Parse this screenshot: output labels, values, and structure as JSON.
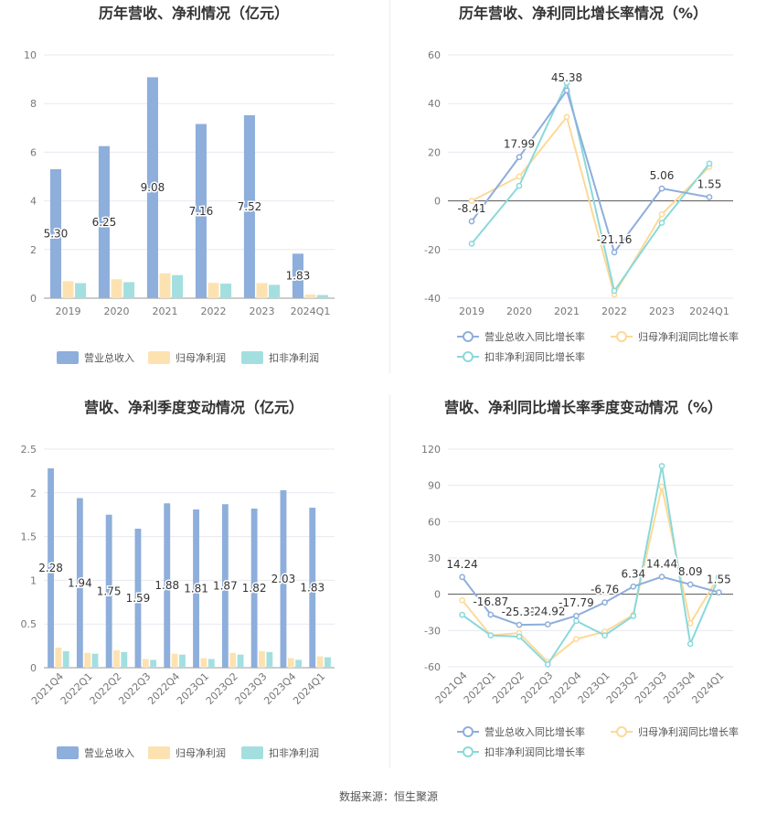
{
  "colors": {
    "revenue": "#8eaedb",
    "net_profit": "#fde2b1",
    "deducted_profit": "#a4dfe0",
    "revenue_line": "#8eaedb",
    "net_line": "#fdd998",
    "deducted_line": "#89d9da"
  },
  "source": "数据来源：恒生聚源",
  "chart_data": [
    {
      "type": "bar",
      "title": "历年营收、净利情况（亿元）",
      "categories": [
        "2019",
        "2020",
        "2021",
        "2022",
        "2023",
        "2024Q1"
      ],
      "ylim": [
        0,
        10
      ],
      "yticks": [
        "0",
        "2",
        "4",
        "6",
        "8",
        "10"
      ],
      "series": [
        {
          "name": "营业总收入",
          "values": [
            5.3,
            6.25,
            9.08,
            7.16,
            7.52,
            1.83
          ],
          "labels": [
            "5.30",
            "6.25",
            "9.08",
            "7.16",
            "7.52",
            "1.83"
          ]
        },
        {
          "name": "归母净利润",
          "values": [
            0.7,
            0.78,
            1.02,
            0.63,
            0.62,
            0.15
          ]
        },
        {
          "name": "扣非净利润",
          "values": [
            0.62,
            0.66,
            0.95,
            0.6,
            0.55,
            0.13
          ]
        }
      ],
      "grid": true,
      "legend": "bottom"
    },
    {
      "type": "line",
      "title": "历年营收、净利同比增长率情况（%）",
      "categories": [
        "2019",
        "2020",
        "2021",
        "2022",
        "2023",
        "2024Q1"
      ],
      "ylim": [
        -40,
        60
      ],
      "yticks": [
        "-40",
        "-20",
        "0",
        "20",
        "40",
        "60"
      ],
      "series": [
        {
          "name": "营业总收入同比增长率",
          "values": [
            -8.41,
            17.99,
            45.38,
            -21.16,
            5.06,
            1.55
          ],
          "labels": [
            "-8.41",
            "17.99",
            "45.38",
            "-21.16",
            "5.06",
            "1.55"
          ]
        },
        {
          "name": "归母净利润同比增长率",
          "values": [
            0,
            10,
            34.5,
            -38.5,
            -5.5,
            14
          ]
        },
        {
          "name": "扣非净利润同比增长率",
          "values": [
            -17.6,
            6.2,
            48.5,
            -37,
            -9,
            15.3
          ]
        }
      ],
      "grid": true,
      "legend": "bottom"
    },
    {
      "type": "bar",
      "title": "营收、净利季度变动情况（亿元）",
      "categories": [
        "2021Q4",
        "2022Q1",
        "2022Q2",
        "2022Q3",
        "2022Q4",
        "2023Q1",
        "2023Q2",
        "2023Q3",
        "2023Q4",
        "2024Q1"
      ],
      "ylim": [
        0,
        2.5
      ],
      "yticks": [
        "0",
        "0.5",
        "1",
        "1.5",
        "2",
        "2.5"
      ],
      "series": [
        {
          "name": "营业总收入",
          "values": [
            2.28,
            1.94,
            1.75,
            1.59,
            1.88,
            1.81,
            1.87,
            1.82,
            2.03,
            1.83
          ],
          "labels": [
            "2.28",
            "1.94",
            "1.75",
            "1.59",
            "1.88",
            "1.81",
            "1.87",
            "1.82",
            "2.03",
            "1.83"
          ]
        },
        {
          "name": "归母净利润",
          "values": [
            0.23,
            0.17,
            0.2,
            0.1,
            0.16,
            0.11,
            0.17,
            0.19,
            0.11,
            0.13
          ]
        },
        {
          "name": "扣非净利润",
          "values": [
            0.19,
            0.16,
            0.18,
            0.09,
            0.15,
            0.1,
            0.15,
            0.18,
            0.09,
            0.12
          ]
        }
      ],
      "grid": true,
      "legend": "bottom"
    },
    {
      "type": "line",
      "title": "营收、净利同比增长率季度变动情况（%）",
      "categories": [
        "2021Q4",
        "2022Q1",
        "2022Q2",
        "2022Q3",
        "2022Q4",
        "2023Q1",
        "2023Q2",
        "2023Q3",
        "2023Q4",
        "2024Q1"
      ],
      "ylim": [
        -60,
        120
      ],
      "yticks": [
        "-60",
        "-30",
        "0",
        "30",
        "60",
        "90",
        "120"
      ],
      "series": [
        {
          "name": "营业总收入同比增长率",
          "values": [
            14.24,
            -16.87,
            -25.31,
            -24.92,
            -17.79,
            -6.76,
            6.34,
            14.44,
            8.09,
            1.55
          ],
          "labels": [
            "14.24",
            "-16.87",
            "-25.31",
            "-24.92",
            "-17.79",
            "-6.76",
            "6.34",
            "14.44",
            "8.09",
            "1.55"
          ]
        },
        {
          "name": "归母净利润同比增长率",
          "values": [
            -5,
            -34,
            -32,
            -56,
            -37,
            -31,
            -17,
            89,
            -24,
            15
          ]
        },
        {
          "name": "扣非净利润同比增长率",
          "values": [
            -17,
            -34,
            -35,
            -58,
            -22,
            -34,
            -18,
            106,
            -41,
            14
          ]
        }
      ],
      "grid": true,
      "legend": "bottom"
    }
  ]
}
